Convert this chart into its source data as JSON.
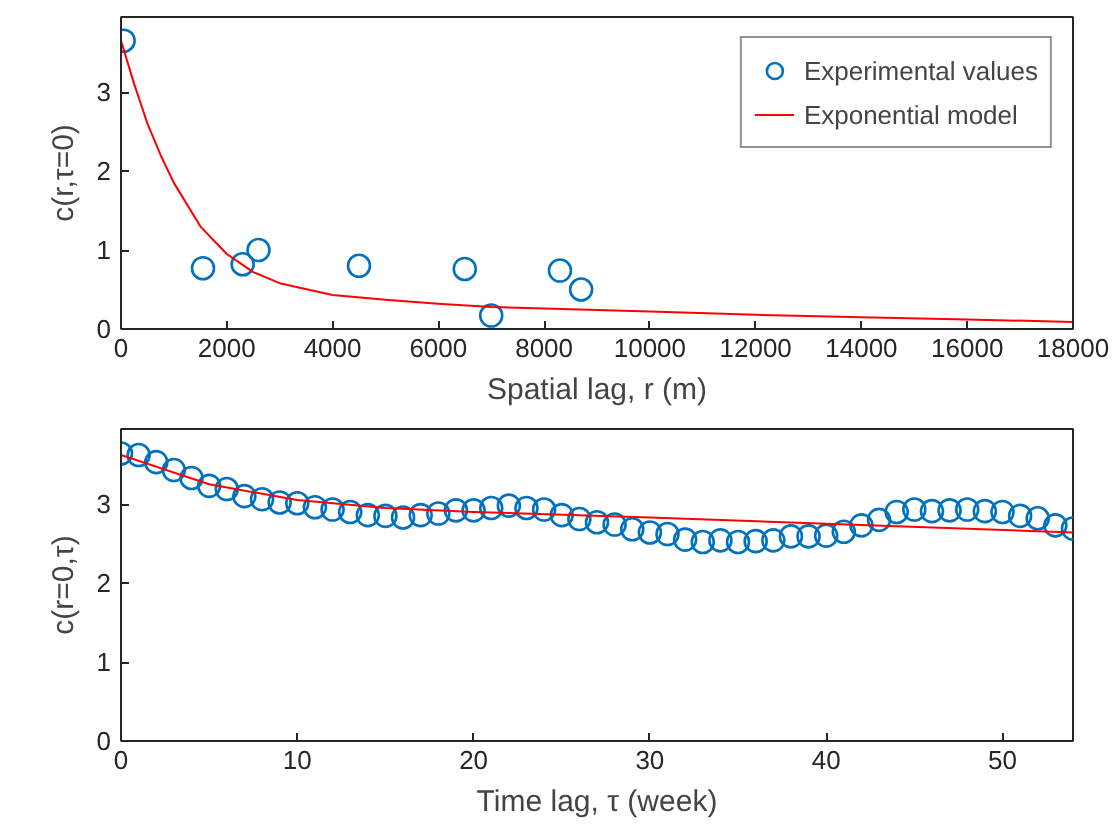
{
  "chart_data": [
    {
      "type": "scatter",
      "xlabel": "Spatial lag, r (m)",
      "ylabel": "c(r,τ=0)",
      "xlim": [
        0,
        18000
      ],
      "ylim": [
        0,
        3.95
      ],
      "xticks": [
        0,
        2000,
        4000,
        6000,
        8000,
        10000,
        12000,
        14000,
        16000,
        18000
      ],
      "yticks": [
        0,
        1,
        2,
        3
      ],
      "grid": false,
      "legend": "top right",
      "series": [
        {
          "name": "Experimental values",
          "marker": "circle",
          "color": "#0072bd",
          "x": [
            50,
            1550,
            2300,
            2600,
            4500,
            6500,
            7000,
            8300,
            8700
          ],
          "values": [
            3.65,
            0.77,
            0.82,
            1.0,
            0.8,
            0.76,
            0.17,
            0.74,
            0.5
          ]
        },
        {
          "name": "Exponential model",
          "type": "line",
          "marker": "none",
          "color": "#ff0000",
          "x": [
            0,
            250,
            500,
            750,
            1000,
            1500,
            2000,
            2500,
            3000,
            4000,
            5000,
            6000,
            7000,
            8000,
            10000,
            12000,
            14000,
            16000,
            18000
          ],
          "values": [
            3.65,
            3.1,
            2.6,
            2.2,
            1.85,
            1.3,
            0.95,
            0.72,
            0.58,
            0.43,
            0.37,
            0.32,
            0.28,
            0.26,
            0.22,
            0.18,
            0.15,
            0.12,
            0.09
          ]
        }
      ]
    },
    {
      "type": "scatter",
      "xlabel": "Time lag, τ (week)",
      "ylabel": "c(r=0,τ)",
      "xlim": [
        0,
        54
      ],
      "ylim": [
        0,
        3.95
      ],
      "xticks": [
        0,
        10,
        20,
        30,
        40,
        50
      ],
      "yticks": [
        0,
        1,
        2,
        3
      ],
      "grid": false,
      "series": [
        {
          "marker": "circle",
          "color": "#0072bd",
          "x": [
            0,
            1,
            2,
            3,
            4,
            5,
            6,
            7,
            8,
            9,
            10,
            11,
            12,
            13,
            14,
            15,
            16,
            17,
            18,
            19,
            20,
            21,
            22,
            23,
            24,
            25,
            26,
            27,
            28,
            29,
            30,
            31,
            32,
            33,
            34,
            35,
            36,
            37,
            38,
            39,
            40,
            41,
            42,
            43,
            44,
            45,
            46,
            47,
            48,
            49,
            50,
            51,
            52,
            53,
            54
          ],
          "values": [
            3.64,
            3.62,
            3.53,
            3.43,
            3.33,
            3.23,
            3.19,
            3.1,
            3.06,
            3.02,
            3.01,
            2.96,
            2.93,
            2.9,
            2.86,
            2.85,
            2.83,
            2.86,
            2.88,
            2.92,
            2.92,
            2.95,
            2.98,
            2.95,
            2.93,
            2.86,
            2.81,
            2.77,
            2.74,
            2.68,
            2.64,
            2.62,
            2.55,
            2.52,
            2.54,
            2.52,
            2.53,
            2.54,
            2.59,
            2.59,
            2.6,
            2.65,
            2.73,
            2.8,
            2.9,
            2.93,
            2.91,
            2.92,
            2.93,
            2.91,
            2.9,
            2.85,
            2.82,
            2.73,
            2.69
          ]
        },
        {
          "type": "line",
          "marker": "none",
          "color": "#ff0000",
          "x": [
            0,
            5,
            10,
            15,
            20,
            30,
            40,
            54
          ],
          "values": [
            3.62,
            3.25,
            3.05,
            2.95,
            2.9,
            2.83,
            2.75,
            2.64
          ]
        }
      ]
    }
  ]
}
